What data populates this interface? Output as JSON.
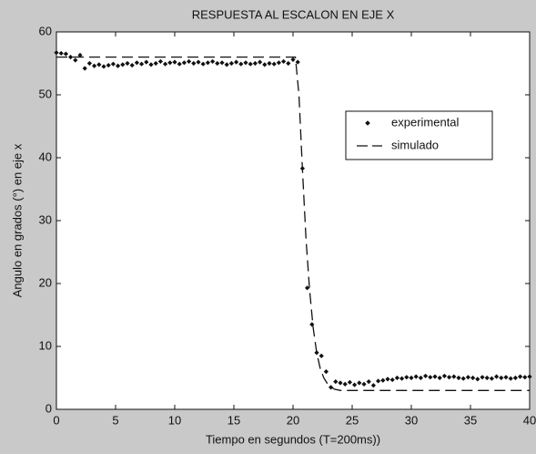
{
  "chart_data": {
    "type": "scatter-line",
    "title": "RESPUESTA AL ESCALON EN EJE X",
    "xlabel": "Tiempo en segundos (T=200ms))",
    "ylabel": "Angulo en grados (°) en eje x",
    "xlim": [
      0,
      40
    ],
    "ylim": [
      0,
      60
    ],
    "xticks": [
      0,
      5,
      10,
      15,
      20,
      25,
      30,
      35,
      40
    ],
    "yticks": [
      0,
      10,
      20,
      30,
      40,
      50,
      60
    ],
    "legend": "right",
    "series": [
      {
        "name": "experimental",
        "color": "#111111",
        "marker": "diamond",
        "x": [
          0,
          0.4,
          0.8,
          1.2,
          1.6,
          2,
          2.4,
          2.8,
          3.2,
          3.6,
          4,
          4.4,
          4.8,
          5.2,
          5.6,
          6,
          6.4,
          6.8,
          7.2,
          7.6,
          8,
          8.4,
          8.8,
          9.2,
          9.6,
          10,
          10.4,
          10.8,
          11.2,
          11.6,
          12,
          12.4,
          12.8,
          13.2,
          13.6,
          14,
          14.4,
          14.8,
          15.2,
          15.6,
          16,
          16.4,
          16.8,
          17.2,
          17.6,
          18,
          18.4,
          18.8,
          19.2,
          19.6,
          20,
          20.4,
          20.8,
          21.2,
          21.6,
          22,
          22.4,
          22.8,
          23.2,
          23.6,
          24,
          24.4,
          24.8,
          25.2,
          25.6,
          26,
          26.4,
          26.8,
          27.2,
          27.6,
          28,
          28.4,
          28.8,
          29.2,
          29.6,
          30,
          30.4,
          30.8,
          31.2,
          31.6,
          32,
          32.4,
          32.8,
          33.2,
          33.6,
          34,
          34.4,
          34.8,
          35.2,
          35.6,
          36,
          36.4,
          36.8,
          37.2,
          37.6,
          38,
          38.4,
          38.8,
          39.2,
          39.6,
          40
        ],
        "values": [
          56.7,
          56.6,
          56.5,
          56,
          55.5,
          56.3,
          54.2,
          55,
          54.6,
          54.8,
          54.5,
          54.7,
          54.9,
          54.6,
          54.8,
          55,
          54.7,
          55.1,
          54.9,
          55.2,
          54.8,
          55,
          55.3,
          54.9,
          55.1,
          55.2,
          54.9,
          55.1,
          55.3,
          55,
          55.2,
          54.9,
          55.1,
          55.3,
          55,
          55.1,
          54.8,
          55,
          55.2,
          54.9,
          55.1,
          54.9,
          55,
          55.2,
          54.8,
          55,
          54.9,
          55.1,
          55.3,
          55,
          55.6,
          55.2,
          38.3,
          19.3,
          13.5,
          9,
          8.5,
          6,
          3.5,
          4.4,
          4.2,
          4,
          4.3,
          3.9,
          4.2,
          4,
          4.4,
          3.8,
          4.5,
          4.6,
          4.8,
          4.7,
          5,
          4.9,
          5.1,
          5,
          5.2,
          5,
          5.3,
          5.1,
          5.2,
          5,
          5.3,
          5.1,
          5.2,
          5,
          4.9,
          5.1,
          5,
          4.8,
          5.1,
          5,
          4.9,
          5.2,
          5,
          5.1,
          4.9,
          5,
          5.2,
          5.1,
          5.2
        ]
      },
      {
        "name": "simulado",
        "color": "#111111",
        "dash": true,
        "x": [
          0,
          20.2,
          20.5,
          20.8,
          21.1,
          21.4,
          21.7,
          22,
          22.3,
          22.6,
          23,
          23.5,
          24,
          40
        ],
        "values": [
          56,
          56,
          50,
          38,
          27,
          19,
          13,
          9,
          6.5,
          5,
          3.8,
          3.2,
          3,
          3
        ]
      }
    ]
  }
}
